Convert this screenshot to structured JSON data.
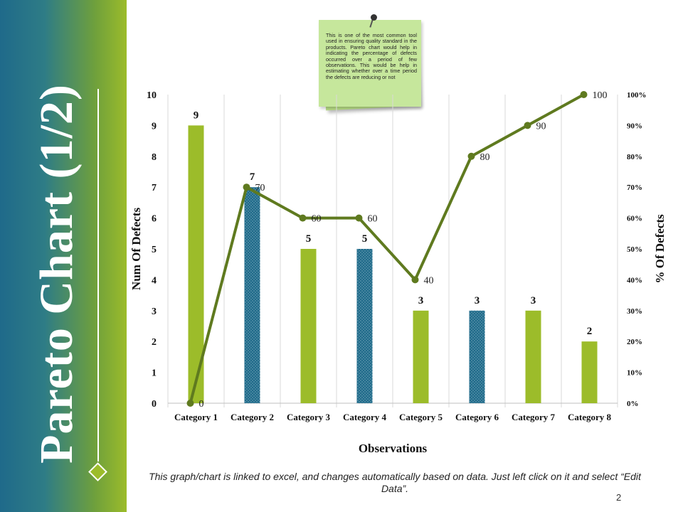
{
  "sidebar": {
    "title": "Pareto Chart (1/2)",
    "color_top": "#1f6a8a",
    "color_bottom": "#9cbc2a"
  },
  "note": {
    "text": "This is one of the most common tool used in ensuring quality standard in the products. Pareto chart would help in indicating the percentage of defects occurred over a period of few observations. This would be help in estimating whether over a time period the defects are reducing or not"
  },
  "footer": {
    "text": "This graph/chart is linked to excel, and changes automatically based on data. Just left click on it and select “Edit Data”."
  },
  "page_number": "2",
  "chart_data": {
    "type": "bar",
    "categories": [
      "Category 1",
      "Category 2",
      "Category 3",
      "Category 4",
      "Category 5",
      "Category 6",
      "Category 7",
      "Category 8"
    ],
    "series": [
      {
        "name": "Num Of Defects",
        "type": "bar",
        "axis": "left",
        "values": [
          9,
          7,
          5,
          5,
          3,
          3,
          3,
          2
        ],
        "colors": [
          "#9cbc2a",
          "#1f6a8a",
          "#9cbc2a",
          "#1f6a8a",
          "#9cbc2a",
          "#1f6a8a",
          "#9cbc2a",
          "#9cbc2a"
        ]
      },
      {
        "name": "% Of Defects",
        "type": "line",
        "axis": "right",
        "values": [
          0,
          70,
          60,
          60,
          40,
          80,
          90,
          100
        ],
        "color": "#5f7a1f"
      }
    ],
    "xlabel": "Observations",
    "ylabel": "Num Of Defects",
    "y2label": "% Of Defects",
    "ylim": [
      0,
      10
    ],
    "y2lim": [
      0,
      100
    ],
    "yticks": [
      "0",
      "1",
      "2",
      "3",
      "4",
      "5",
      "6",
      "7",
      "8",
      "9",
      "10"
    ],
    "y2ticks": [
      "0%",
      "10%",
      "20%",
      "30%",
      "40%",
      "50%",
      "60%",
      "70%",
      "80%",
      "90%",
      "100%"
    ],
    "grid": "vertical"
  }
}
